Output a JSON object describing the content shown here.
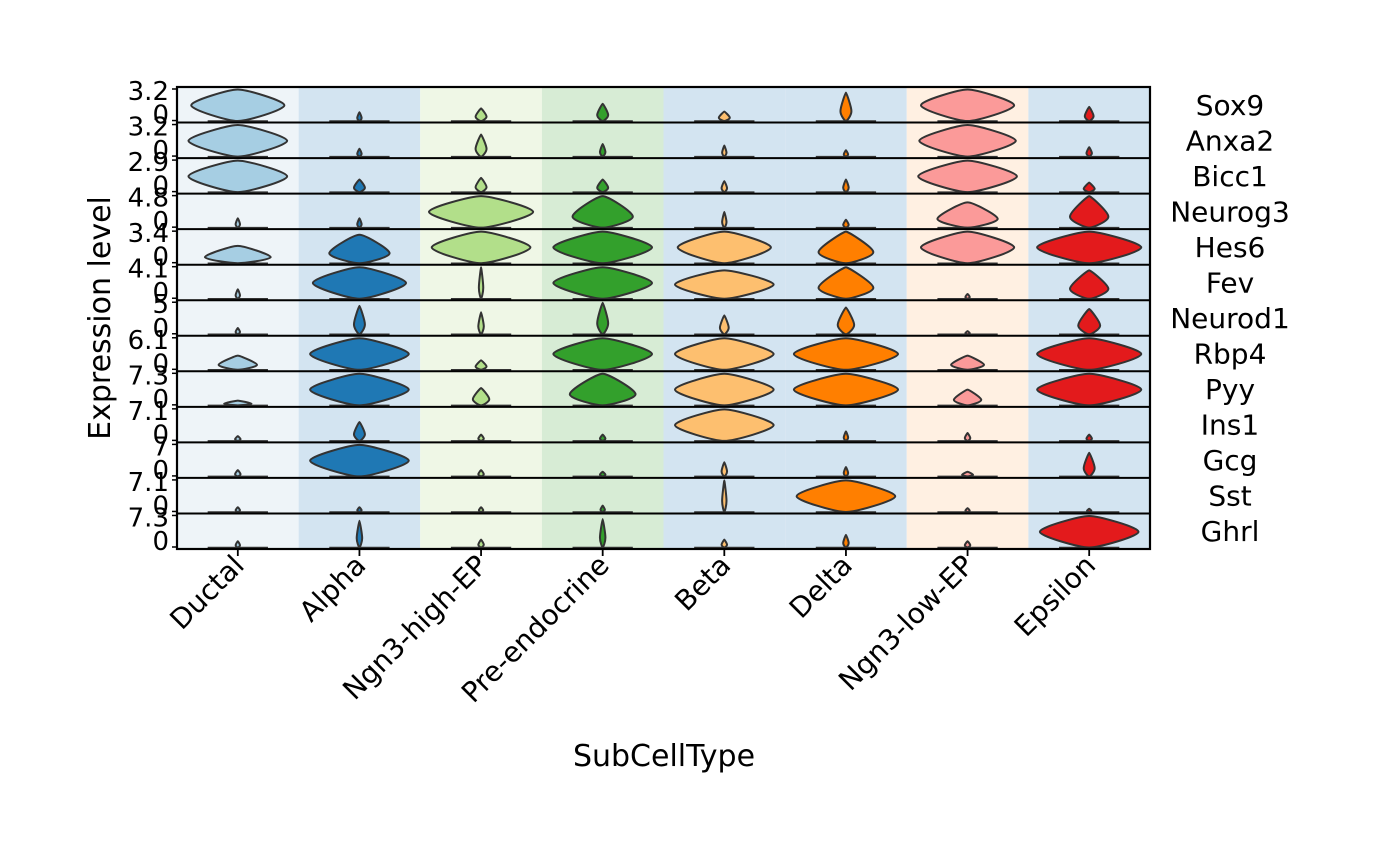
{
  "chart_data": {
    "type": "violin",
    "title": "",
    "xlabel": "SubCellType",
    "ylabel": "Expression level",
    "categories": [
      "Ductal",
      "Alpha",
      "Ngn3-high-EP",
      "Pre-endocrine",
      "Beta",
      "Delta",
      "Ngn3-low-EP",
      "Epsilon"
    ],
    "colors": [
      "#a6cee3",
      "#1f78b4",
      "#b2df8a",
      "#33a02c",
      "#fdbf6f",
      "#ff7f00",
      "#fb9a99",
      "#e31a1c"
    ],
    "background_colors": [
      "#eef4f8",
      "#d3e4f1",
      "#eff7e6",
      "#d7ecd5",
      "#d3e4f1",
      "#d3e4f1",
      "#fff0e2",
      "#d3e4f1"
    ],
    "genes": [
      {
        "name": "Sox9",
        "ymax_label": "3.2",
        "ymin_label": "0"
      },
      {
        "name": "Anxa2",
        "ymax_label": "3.2",
        "ymin_label": "0"
      },
      {
        "name": "Bicc1",
        "ymax_label": "2.9",
        "ymin_label": "0"
      },
      {
        "name": "Neurog3",
        "ymax_label": "4.8",
        "ymin_label": "0"
      },
      {
        "name": "Hes6",
        "ymax_label": "3.4",
        "ymin_label": "0"
      },
      {
        "name": "Fev",
        "ymax_label": "4.1",
        "ymin_label": "0"
      },
      {
        "name": "Neurod1",
        "ymax_label": "5",
        "ymin_label": "0"
      },
      {
        "name": "Rbp4",
        "ymax_label": "6.1",
        "ymin_label": "0"
      },
      {
        "name": "Pyy",
        "ymax_label": "7.3",
        "ymin_label": "0"
      },
      {
        "name": "Ins1",
        "ymax_label": "7.1",
        "ymin_label": "0"
      },
      {
        "name": "Gcg",
        "ymax_label": "7",
        "ymin_label": "0"
      },
      {
        "name": "Sst",
        "ymax_label": "7.1",
        "ymin_label": "0"
      },
      {
        "name": "Ghrl",
        "ymax_label": "7.3",
        "ymin_label": "0"
      }
    ],
    "violins": [
      [
        [
          0.85,
          1.0
        ],
        [
          0.0,
          0.28
        ],
        [
          0.1,
          0.4
        ],
        [
          0.1,
          0.55
        ],
        [
          0.1,
          0.3
        ],
        [
          0.1,
          0.9
        ],
        [
          0.85,
          1.0
        ],
        [
          0.08,
          0.45
        ]
      ],
      [
        [
          0.9,
          1.0
        ],
        [
          0.0,
          0.25
        ],
        [
          0.1,
          0.7
        ],
        [
          0.05,
          0.4
        ],
        [
          0.0,
          0.35
        ],
        [
          0.0,
          0.2
        ],
        [
          0.88,
          1.0
        ],
        [
          0.05,
          0.3
        ]
      ],
      [
        [
          0.9,
          1.0
        ],
        [
          0.1,
          0.4
        ],
        [
          0.1,
          0.45
        ],
        [
          0.1,
          0.4
        ],
        [
          0.05,
          0.35
        ],
        [
          0.05,
          0.4
        ],
        [
          0.9,
          1.0
        ],
        [
          0.1,
          0.3
        ]
      ],
      [
        [
          0.0,
          0.3
        ],
        [
          0.0,
          0.3
        ],
        [
          0.95,
          1.0
        ],
        [
          0.55,
          1.0
        ],
        [
          0.0,
          0.5
        ],
        [
          0.05,
          0.25
        ],
        [
          0.55,
          0.8
        ],
        [
          0.35,
          1.0
        ]
      ],
      [
        [
          0.6,
          0.55
        ],
        [
          0.55,
          0.9
        ],
        [
          0.9,
          1.0
        ],
        [
          0.9,
          1.0
        ],
        [
          0.85,
          1.0
        ],
        [
          0.5,
          1.0
        ],
        [
          0.85,
          1.0
        ],
        [
          0.95,
          1.0
        ]
      ],
      [
        [
          0.0,
          0.3
        ],
        [
          0.85,
          1.0
        ],
        [
          0.0,
          1.0
        ],
        [
          0.9,
          1.0
        ],
        [
          0.9,
          0.9
        ],
        [
          0.5,
          1.0
        ],
        [
          0.0,
          0.15
        ],
        [
          0.35,
          0.9
        ]
      ],
      [
        [
          0.0,
          0.2
        ],
        [
          0.1,
          0.9
        ],
        [
          0.05,
          0.7
        ],
        [
          0.1,
          1.0
        ],
        [
          0.08,
          0.6
        ],
        [
          0.15,
          0.85
        ],
        [
          0.0,
          0.1
        ],
        [
          0.2,
          0.8
        ]
      ],
      [
        [
          0.35,
          0.45
        ],
        [
          0.9,
          1.0
        ],
        [
          0.1,
          0.3
        ],
        [
          0.9,
          1.0
        ],
        [
          0.9,
          1.0
        ],
        [
          0.95,
          1.0
        ],
        [
          0.3,
          0.45
        ],
        [
          0.95,
          1.0
        ]
      ],
      [
        [
          0.25,
          0.15
        ],
        [
          0.9,
          1.0
        ],
        [
          0.15,
          0.55
        ],
        [
          0.6,
          1.0
        ],
        [
          0.9,
          1.0
        ],
        [
          0.95,
          1.0
        ],
        [
          0.25,
          0.5
        ],
        [
          0.95,
          1.0
        ]
      ],
      [
        [
          0.05,
          0.15
        ],
        [
          0.1,
          0.6
        ],
        [
          0.05,
          0.2
        ],
        [
          0.05,
          0.2
        ],
        [
          0.9,
          1.0
        ],
        [
          0.02,
          0.3
        ],
        [
          0.05,
          0.25
        ],
        [
          0.05,
          0.2
        ]
      ],
      [
        [
          0.05,
          0.2
        ],
        [
          0.9,
          1.0
        ],
        [
          0.05,
          0.2
        ],
        [
          0.05,
          0.15
        ],
        [
          0.05,
          0.45
        ],
        [
          0.03,
          0.3
        ],
        [
          0.1,
          0.15
        ],
        [
          0.1,
          0.75
        ]
      ],
      [
        [
          0.0,
          0.15
        ],
        [
          0.0,
          0.15
        ],
        [
          0.0,
          0.15
        ],
        [
          0.0,
          0.2
        ],
        [
          0.03,
          1.0
        ],
        [
          0.9,
          1.0
        ],
        [
          0.0,
          0.12
        ],
        [
          0.0,
          0.1
        ]
      ],
      [
        [
          0.02,
          0.2
        ],
        [
          0.05,
          0.85
        ],
        [
          0.05,
          0.25
        ],
        [
          0.05,
          0.9
        ],
        [
          0.05,
          0.25
        ],
        [
          0.05,
          0.4
        ],
        [
          0.05,
          0.2
        ],
        [
          0.9,
          1.0
        ]
      ]
    ]
  }
}
